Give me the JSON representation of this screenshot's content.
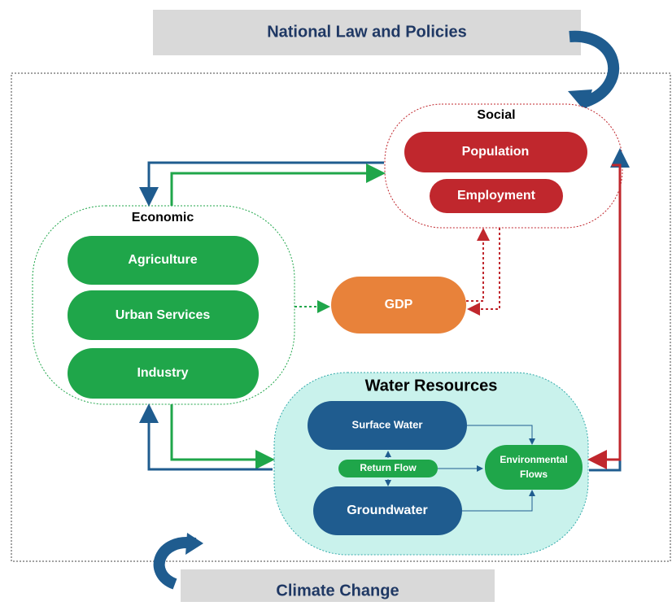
{
  "banners": {
    "top": "National Law and Policies",
    "bottom": "Climate Change"
  },
  "groups": {
    "social": {
      "label": "Social",
      "items": [
        "Population",
        "Employment"
      ]
    },
    "economic": {
      "label": "Economic",
      "items": [
        "Agriculture",
        "Urban Services",
        "Industry"
      ]
    },
    "gdp": {
      "label": "GDP"
    },
    "water": {
      "label": "Water Resources",
      "surface": "Surface Water",
      "return": "Return Flow",
      "ground": "Groundwater",
      "environmental": [
        "Environmental",
        "Flows"
      ]
    }
  }
}
